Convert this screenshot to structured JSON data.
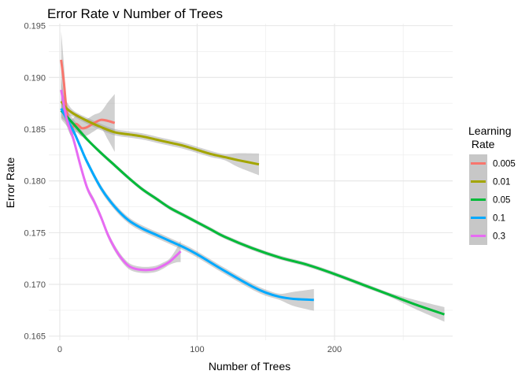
{
  "chart_data": {
    "type": "line",
    "title": "Error Rate v Number of Trees",
    "xlabel": "Number of Trees",
    "ylabel": "Error Rate",
    "xlim": [
      -8,
      286
    ],
    "ylim": [
      0.1646,
      0.1952
    ],
    "x_ticks": [
      0,
      100,
      200
    ],
    "x_tick_labels": [
      "0",
      "100",
      "200"
    ],
    "x_minor_ticks": [
      50,
      150,
      250
    ],
    "y_ticks": [
      0.165,
      0.17,
      0.175,
      0.18,
      0.185,
      0.19,
      0.195
    ],
    "y_tick_labels": [
      "0.165",
      "0.170",
      "0.175",
      "0.180",
      "0.185",
      "0.190",
      "0.195"
    ],
    "y_minor_ticks": [
      0.1675,
      0.1725,
      0.1775,
      0.1825,
      0.1875,
      0.1925
    ],
    "grid": true,
    "legend": {
      "title_line1": "Learning",
      "title_line2": " Rate",
      "placement": "right"
    },
    "series": [
      {
        "name": "0.005",
        "color": "#F8766D",
        "band": 0.0008,
        "x": [
          1,
          3,
          5,
          8,
          12,
          16,
          20,
          25,
          30,
          35,
          40
        ],
        "y": [
          0.1917,
          0.1895,
          0.1868,
          0.1852,
          0.1855,
          0.1851,
          0.1852,
          0.1856,
          0.1859,
          0.1858,
          0.1856
        ]
      },
      {
        "name": "0.01",
        "color": "#A3A500",
        "band": 0.0003,
        "x": [
          1,
          5,
          10,
          20,
          30,
          40,
          50,
          60,
          70,
          80,
          90,
          100,
          110,
          120,
          130,
          145
        ],
        "y": [
          0.1877,
          0.187,
          0.1865,
          0.1858,
          0.1852,
          0.1847,
          0.1845,
          0.1843,
          0.184,
          0.1837,
          0.1834,
          0.183,
          0.1826,
          0.1823,
          0.182,
          0.1816
        ]
      },
      {
        "name": "0.05",
        "color": "#00BA38",
        "band": 0.0002,
        "x": [
          1,
          10,
          20,
          30,
          40,
          50,
          60,
          70,
          80,
          90,
          100,
          110,
          120,
          140,
          160,
          180,
          200,
          220,
          240,
          260,
          280
        ],
        "y": [
          0.1868,
          0.1855,
          0.184,
          0.1827,
          0.1815,
          0.1803,
          0.1792,
          0.1783,
          0.1774,
          0.1767,
          0.176,
          0.1753,
          0.1746,
          0.1735,
          0.1726,
          0.1719,
          0.171,
          0.17,
          0.169,
          0.168,
          0.1671
        ]
      },
      {
        "name": "0.1",
        "color": "#00A9FF",
        "band": 0.0003,
        "x": [
          1,
          5,
          10,
          15,
          20,
          30,
          40,
          50,
          60,
          70,
          80,
          90,
          100,
          120,
          140,
          150,
          160,
          170,
          185
        ],
        "y": [
          0.187,
          0.186,
          0.1848,
          0.1833,
          0.1818,
          0.1793,
          0.1775,
          0.1762,
          0.1754,
          0.1748,
          0.1742,
          0.1736,
          0.1729,
          0.1713,
          0.1698,
          0.1692,
          0.1688,
          0.1686,
          0.1685
        ]
      },
      {
        "name": "0.3",
        "color": "#E76BF3",
        "band": 0.0003,
        "x": [
          1,
          5,
          10,
          15,
          20,
          25,
          30,
          35,
          40,
          45,
          50,
          55,
          60,
          65,
          70,
          75,
          80,
          85,
          88
        ],
        "y": [
          0.1888,
          0.186,
          0.184,
          0.1815,
          0.1793,
          0.178,
          0.1765,
          0.1748,
          0.1735,
          0.1725,
          0.1718,
          0.1715,
          0.1714,
          0.1714,
          0.1715,
          0.1718,
          0.1722,
          0.1728,
          0.1732
        ]
      }
    ]
  }
}
